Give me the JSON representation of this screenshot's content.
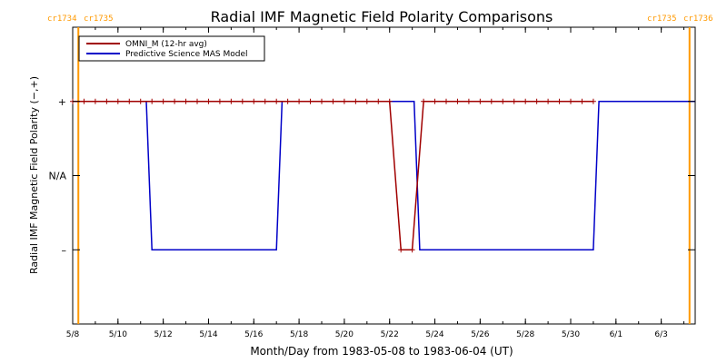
{
  "chart_data": {
    "type": "line",
    "title": "Radial IMF Magnetic Field Polarity Comparisons",
    "xlabel": "Month/Day from 1983-05-08 to 1983-06-04 (UT)",
    "ylabel": "Radial IMF Magnetic Field Polarity (−,+)",
    "x_unit": "date",
    "xlim": [
      "1983-05-08T00:00",
      "1983-06-04T12:00"
    ],
    "x_ticks": [
      {
        "date": "1983-05-08",
        "label": "5/8"
      },
      {
        "date": "1983-05-10",
        "label": "5/10"
      },
      {
        "date": "1983-05-12",
        "label": "5/12"
      },
      {
        "date": "1983-05-14",
        "label": "5/14"
      },
      {
        "date": "1983-05-16",
        "label": "5/16"
      },
      {
        "date": "1983-05-18",
        "label": "5/18"
      },
      {
        "date": "1983-05-20",
        "label": "5/20"
      },
      {
        "date": "1983-05-22",
        "label": "5/22"
      },
      {
        "date": "1983-05-24",
        "label": "5/24"
      },
      {
        "date": "1983-05-26",
        "label": "5/26"
      },
      {
        "date": "1983-05-28",
        "label": "5/28"
      },
      {
        "date": "1983-05-30",
        "label": "5/30"
      },
      {
        "date": "1983-06-01",
        "label": "6/1"
      },
      {
        "date": "1983-06-03",
        "label": "6/3"
      }
    ],
    "ylim": [
      -2,
      2
    ],
    "y_ticks": [
      {
        "value": 1,
        "label": "+"
      },
      {
        "value": 0,
        "label": "N/A"
      },
      {
        "value": -1,
        "label": "–"
      }
    ],
    "carrington_markers": [
      {
        "date": "1983-05-08T06:00",
        "left_label": "cr1734",
        "right_label": "cr1735",
        "color": "#ff9900",
        "label_side": "left"
      },
      {
        "date": "1983-06-04T06:00",
        "left_label": "cr1735",
        "right_label": "cr1736",
        "color": "#ff9900",
        "label_side": "right"
      }
    ],
    "legend": {
      "placement": "top-left"
    },
    "series": [
      {
        "name": "OMNI_M (12-hr avg)",
        "color": "#a00000",
        "markers": true,
        "x": [
          "1983-05-08T00:00",
          "1983-05-08T12:00",
          "1983-05-09T00:00",
          "1983-05-09T12:00",
          "1983-05-10T00:00",
          "1983-05-10T12:00",
          "1983-05-11T00:00",
          "1983-05-11T12:00",
          "1983-05-12T00:00",
          "1983-05-12T12:00",
          "1983-05-13T00:00",
          "1983-05-13T12:00",
          "1983-05-14T00:00",
          "1983-05-14T12:00",
          "1983-05-15T00:00",
          "1983-05-15T12:00",
          "1983-05-16T00:00",
          "1983-05-16T12:00",
          "1983-05-17T00:00",
          "1983-05-17T12:00",
          "1983-05-18T00:00",
          "1983-05-18T12:00",
          "1983-05-19T00:00",
          "1983-05-19T12:00",
          "1983-05-20T00:00",
          "1983-05-20T12:00",
          "1983-05-21T00:00",
          "1983-05-21T12:00",
          "1983-05-22T00:00",
          "1983-05-22T12:00",
          "1983-05-23T00:00",
          "1983-05-23T12:00",
          "1983-05-24T00:00",
          "1983-05-24T12:00",
          "1983-05-25T00:00",
          "1983-05-25T12:00",
          "1983-05-26T00:00",
          "1983-05-26T12:00",
          "1983-05-27T00:00",
          "1983-05-27T12:00",
          "1983-05-28T00:00",
          "1983-05-28T12:00",
          "1983-05-29T00:00",
          "1983-05-29T12:00",
          "1983-05-30T00:00",
          "1983-05-30T12:00",
          "1983-05-31T00:00"
        ],
        "y": [
          1,
          1,
          1,
          1,
          1,
          1,
          1,
          1,
          1,
          1,
          1,
          1,
          1,
          1,
          1,
          1,
          1,
          1,
          1,
          1,
          1,
          1,
          1,
          1,
          1,
          1,
          1,
          1,
          1,
          -1,
          -1,
          1,
          1,
          1,
          1,
          1,
          1,
          1,
          1,
          1,
          1,
          1,
          1,
          1,
          1,
          1,
          1
        ]
      },
      {
        "name": "Predictive Science MAS Model",
        "color": "#0000c8",
        "markers": false,
        "x": [
          "1983-05-08T00:00",
          "1983-05-11T06:00",
          "1983-05-11T12:00",
          "1983-05-17T00:00",
          "1983-05-17T06:00",
          "1983-05-23T02:00",
          "1983-05-23T08:00",
          "1983-05-31T00:00",
          "1983-05-31T06:00",
          "1983-06-04T12:00"
        ],
        "y": [
          1,
          1,
          -1,
          -1,
          1,
          1,
          -1,
          -1,
          1,
          1
        ]
      }
    ]
  }
}
